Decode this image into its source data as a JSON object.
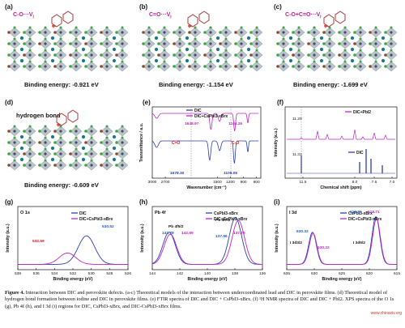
{
  "panels": {
    "a": {
      "label": "(a)",
      "bond": "C-O···V",
      "bond_sub": "I",
      "energy": "Binding energy: -0.921 eV"
    },
    "b": {
      "label": "(b)",
      "bond": "C=O···V",
      "bond_sub": "I",
      "energy": "Binding energy: -1.154 eV"
    },
    "c": {
      "label": "(c)",
      "bond": "C-O+C=O···V",
      "bond_sub": "I",
      "energy": "Binding energy: -1.699 eV"
    },
    "d": {
      "label": "(d)",
      "bond": "hydrogen bond",
      "energy": "Binding energy: -0.609 eV"
    },
    "e": {
      "label": "(e)"
    },
    "f": {
      "label": "(f)"
    },
    "g": {
      "label": "(g)"
    },
    "h": {
      "label": "(h)"
    },
    "i": {
      "label": "(i)"
    }
  },
  "colors": {
    "dic": "#2b3fb0",
    "mix": "#c026c8",
    "red_annot": "#d0191e",
    "blue_annot": "#2060c8",
    "pb": "#4a4a5a",
    "iodine": "#3aa63a",
    "br": "#8a4a2a",
    "cs": "#1a7a8a",
    "mol": "#b05050"
  },
  "chart_data": [
    {
      "type": "line",
      "panel": "e",
      "xlabel": "Wavenumber (cm⁻¹)",
      "ylabel": "Transmittance / a.u.",
      "x_ticks": [
        3000,
        2700,
        1500,
        1200,
        900,
        600
      ],
      "series": [
        {
          "name": "DIC",
          "color": "#2b3fb0"
        },
        {
          "name": "DIC+CsPbI3-xBrx",
          "color": "#c026c8"
        }
      ],
      "annotations": [
        "1648.97",
        "1104.26",
        "C=O",
        "C-O",
        "1678.30",
        "1109.05"
      ]
    },
    {
      "type": "line",
      "panel": "f",
      "xlabel": "Chemical shift (ppm)",
      "ylabel": "Intensity (a.u.)",
      "x_ticks": [
        11.5,
        8.0,
        7.5,
        7.0
      ],
      "series": [
        {
          "name": "DIC+PbI2",
          "color": "#c026c8"
        },
        {
          "name": "DIC",
          "color": "#2b3fb0"
        }
      ],
      "annotations": [
        "11.29",
        "11.33"
      ]
    },
    {
      "type": "line",
      "panel": "g",
      "title": "O 1s",
      "xlabel": "Binding energy (eV)",
      "ylabel": "Intensity (a.u.)",
      "x_ticks": [
        538,
        536,
        534,
        532,
        530,
        528,
        526
      ],
      "series": [
        {
          "name": "DIC",
          "color": "#2b3fb0"
        },
        {
          "name": "DIC+CsPbI3-xBrx",
          "color": "#c026c8"
        }
      ],
      "annotations": [
        "530.52",
        "532.59"
      ]
    },
    {
      "type": "line",
      "panel": "h",
      "title": "Pb 4f",
      "xlabel": "Binding energy (eV)",
      "ylabel": "Intensity (a.u.)",
      "x_ticks": [
        144,
        142,
        140,
        138,
        136
      ],
      "series": [
        {
          "name": "CsPbI3-xBrx",
          "color": "#2b3fb0"
        },
        {
          "name": "DIC+CsPbI3-xBrx",
          "color": "#c026c8"
        }
      ],
      "annotations": [
        "Pb 4f5/2",
        "Pb 4f7/2",
        "142.78",
        "142.69",
        "137.96",
        "137.75"
      ]
    },
    {
      "type": "line",
      "panel": "i",
      "title": "I 3d",
      "xlabel": "Binding energy (eV)",
      "ylabel": "Intensity (a.u.)",
      "x_ticks": [
        635,
        630,
        625,
        620,
        615
      ],
      "series": [
        {
          "name": "CsPbI3-xBrx",
          "color": "#2b3fb0"
        },
        {
          "name": "DIC+CsPbI3-xBrx",
          "color": "#c026c8"
        }
      ],
      "annotations": [
        "630.32",
        "630.22",
        "618.81",
        "618.71",
        "I 3d3/2",
        "I 3d5/2"
      ]
    }
  ],
  "caption": {
    "lead": "Figure 4.",
    "text": " Interaction between DIC and perovskite defects. (a-c) Theoretical models of the interaction between undercoordinated lead and DIC in perovskite films. (d) Theoretical model of hydrogen bond formation between iodine and DIC in perovskite films. (e) FTIR spectra of DIC and DIC + CsPbI3-xBrx. (f) ¹H NMR spectra of DIC and DIC + PbI2. XPS spectra of the O 1s (g), Pb 4f (h), and I 3d (i) regions for DIC, CsPbI3-xBrx, and DIC-CsPbI3-xBrx films."
  },
  "watermark": "www.chinaxiv.org"
}
